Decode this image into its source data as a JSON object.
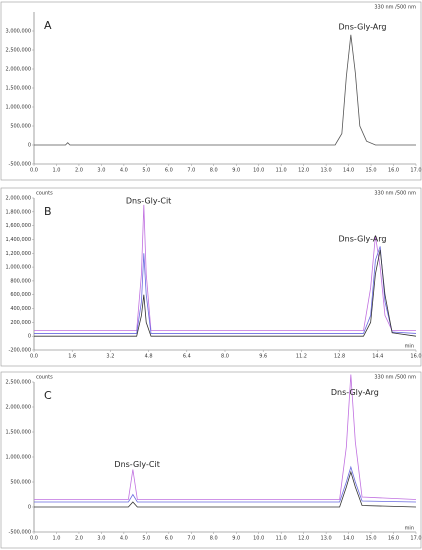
{
  "chart_data": [
    {
      "type": "line",
      "panel_label": "A",
      "subtitle": "330 nm /500 nm",
      "annotations": [
        "Dns-Gly-Arg"
      ],
      "x": [
        0,
        1.4,
        1.5,
        1.6,
        13.4,
        13.7,
        13.9,
        14.1,
        14.3,
        14.5,
        14.8,
        15.2,
        17
      ],
      "series": [
        {
          "color": "#555555",
          "values": [
            0,
            0,
            60000,
            0,
            0,
            300000,
            1800000,
            2900000,
            1900000,
            500000,
            100000,
            0,
            0
          ]
        }
      ],
      "xlim": [
        0,
        17
      ],
      "xticks": [
        {
          "value": 0,
          "label": "0.0"
        },
        {
          "value": 1,
          "label": "1.0"
        },
        {
          "value": 2,
          "label": "2.0"
        },
        {
          "value": 3,
          "label": "3.0"
        },
        {
          "value": 4,
          "label": "4.0"
        },
        {
          "value": 5,
          "label": "5.0"
        },
        {
          "value": 6,
          "label": "6.0"
        },
        {
          "value": 7,
          "label": "7.0"
        },
        {
          "value": 8,
          "label": "8.0"
        },
        {
          "value": 9,
          "label": "9.0"
        },
        {
          "value": 10,
          "label": "10.0"
        },
        {
          "value": 11,
          "label": "11.0"
        },
        {
          "value": 12,
          "label": "12.0"
        },
        {
          "value": 13,
          "label": "13.0"
        },
        {
          "value": 14,
          "label": "14.0"
        },
        {
          "value": 15,
          "label": "15.0"
        },
        {
          "value": 16,
          "label": "16.0"
        },
        {
          "value": 17,
          "label": "17.0"
        }
      ],
      "ylim": [
        -500000,
        3500000
      ],
      "yticks": [
        {
          "value": -500000,
          "label": "-500,000"
        },
        0,
        {
          "value": 500000,
          "label": "500,000"
        },
        {
          "value": 1000000,
          "label": "1,000,000"
        },
        {
          "value": 1500000,
          "label": "1,500,000"
        },
        {
          "value": 2000000,
          "label": "2,000,000"
        },
        {
          "value": 2500000,
          "label": "2,500,000"
        },
        {
          "value": 3000000,
          "label": "3,000,000"
        }
      ]
    },
    {
      "type": "line",
      "panel_label": "B",
      "subtitle": "330 nm /500 nm",
      "y_label": "counts",
      "x_label": "min",
      "annotations": [
        "Dns-Gly-Cit",
        "Dns-Gly-Arg"
      ],
      "x": [
        0,
        4.3,
        4.5,
        4.6,
        4.7,
        4.9,
        13.8,
        14.1,
        14.3,
        14.5,
        14.7,
        15,
        16
      ],
      "series": [
        {
          "color": "#c070e0",
          "values": [
            80000,
            80000,
            900000,
            1900000,
            900000,
            80000,
            80000,
            700000,
            1450000,
            1000000,
            300000,
            80000,
            80000
          ]
        },
        {
          "color": "#6a6ae0",
          "values": [
            40000,
            40000,
            500000,
            1200000,
            600000,
            40000,
            40000,
            300000,
            1100000,
            1300000,
            500000,
            60000,
            40000
          ]
        },
        {
          "color": "#333333",
          "values": [
            0,
            0,
            300000,
            600000,
            200000,
            0,
            0,
            200000,
            900000,
            1250000,
            600000,
            50000,
            0
          ]
        }
      ],
      "xlim": [
        0,
        16
      ],
      "xticks": [
        {
          "value": 0,
          "label": "0.0"
        },
        {
          "value": 1.6,
          "label": "1.6"
        },
        {
          "value": 3.2,
          "label": "3.2"
        },
        {
          "value": 4.8,
          "label": "4.8"
        },
        {
          "value": 6.4,
          "label": "6.4"
        },
        {
          "value": 8,
          "label": "8.0"
        },
        {
          "value": 9.6,
          "label": "9.6"
        },
        {
          "value": 11.2,
          "label": "11.2"
        },
        {
          "value": 12.8,
          "label": "12.8"
        },
        {
          "value": 14.4,
          "label": "14.4"
        },
        {
          "value": 16,
          "label": "16.0"
        }
      ],
      "ylim": [
        -200000,
        2000000
      ],
      "yticks": [
        {
          "value": -200000,
          "label": "-200,000"
        },
        0,
        {
          "value": 200000,
          "label": "200,000"
        },
        {
          "value": 400000,
          "label": "400,000"
        },
        {
          "value": 600000,
          "label": "600,000"
        },
        {
          "value": 800000,
          "label": "800,000"
        },
        {
          "value": 1000000,
          "label": "1,000,000"
        },
        {
          "value": 1200000,
          "label": "1,200,000"
        },
        {
          "value": 1400000,
          "label": "1,400,000"
        },
        {
          "value": 1600000,
          "label": "1,600,000"
        },
        {
          "value": 1800000,
          "label": "1,800,000"
        },
        {
          "value": 2000000,
          "label": "2,000,000"
        }
      ]
    },
    {
      "type": "line",
      "panel_label": "C",
      "subtitle": "330 nm /500 nm",
      "y_label": "counts",
      "x_label": "min",
      "annotations": [
        "Dns-Gly-Cit",
        "Dns-Gly-Arg"
      ],
      "x": [
        0,
        4.2,
        4.4,
        4.6,
        13.6,
        13.9,
        14.1,
        14.3,
        14.6,
        17
      ],
      "series": [
        {
          "color": "#c070e0",
          "values": [
            150000,
            150000,
            750000,
            150000,
            150000,
            1200000,
            2650000,
            1300000,
            200000,
            150000
          ]
        },
        {
          "color": "#6a6ae0",
          "values": [
            100000,
            100000,
            250000,
            100000,
            100000,
            500000,
            800000,
            500000,
            120000,
            100000
          ]
        },
        {
          "color": "#333333",
          "values": [
            0,
            0,
            100000,
            0,
            0,
            400000,
            700000,
            400000,
            30000,
            0
          ]
        }
      ],
      "xlim": [
        0,
        17
      ],
      "xticks": [
        {
          "value": 0,
          "label": "0.0"
        },
        {
          "value": 1,
          "label": "1.0"
        },
        {
          "value": 2,
          "label": "2.0"
        },
        {
          "value": 3,
          "label": "3.0"
        },
        {
          "value": 4,
          "label": "4.0"
        },
        {
          "value": 5,
          "label": "5.0"
        },
        {
          "value": 6,
          "label": "6.0"
        },
        {
          "value": 7,
          "label": "7.0"
        },
        {
          "value": 8,
          "label": "8.0"
        },
        {
          "value": 9,
          "label": "9.0"
        },
        {
          "value": 10,
          "label": "10.0"
        },
        {
          "value": 11,
          "label": "11.0"
        },
        {
          "value": 12,
          "label": "12.0"
        },
        {
          "value": 13,
          "label": "13.0"
        },
        {
          "value": 14,
          "label": "14.0"
        },
        {
          "value": 15,
          "label": "15.0"
        },
        {
          "value": 16,
          "label": "16.0"
        },
        {
          "value": 17,
          "label": "17.0"
        }
      ],
      "ylim": [
        -500000,
        2500000
      ],
      "yticks": [
        {
          "value": -500000,
          "label": "-500,000"
        },
        0,
        {
          "value": 500000,
          "label": "500,000"
        },
        {
          "value": 1000000,
          "label": "1,000,000"
        },
        {
          "value": 1500000,
          "label": "1,500,000"
        },
        {
          "value": 2000000,
          "label": "2,000,000"
        },
        {
          "value": 2500000,
          "label": "2,500,000"
        }
      ]
    }
  ]
}
